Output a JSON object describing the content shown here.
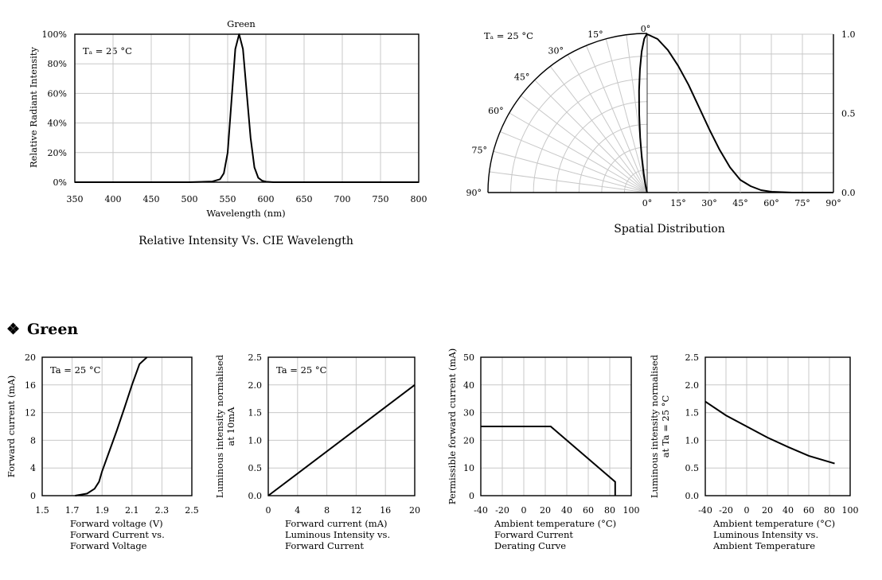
{
  "section": {
    "bullet": "❖",
    "title": "Green"
  },
  "chart_data": [
    {
      "type": "line",
      "id": "spectrum",
      "title": "Relative Intensity Vs. CIE Wavelength",
      "series_label": "Green",
      "condition": "Tₐ = 25 °C",
      "xlabel": "Wavelength (nm)",
      "ylabel": "Relative Radiant Intensity",
      "xlim": [
        350,
        800
      ],
      "ylim": [
        0,
        100
      ],
      "xticks": [
        "350",
        "400",
        "450",
        "500",
        "550",
        "600",
        "650",
        "700",
        "750",
        "800"
      ],
      "yticks": [
        "0%",
        "20%",
        "40%",
        "60%",
        "80%",
        "100%"
      ],
      "grid": true,
      "x": [
        350,
        500,
        530,
        540,
        545,
        550,
        555,
        560,
        565,
        570,
        575,
        580,
        585,
        590,
        595,
        600,
        610,
        800
      ],
      "y": [
        0,
        0,
        0.5,
        2,
        6,
        20,
        55,
        90,
        100,
        90,
        60,
        30,
        10,
        3,
        1,
        0.3,
        0,
        0
      ]
    },
    {
      "type": "line",
      "id": "spatial",
      "title": "Spatial Distribution",
      "condition": "Tₐ = 25 °C",
      "polar_angles": [
        "0°",
        "15°",
        "30°",
        "45°",
        "60°",
        "75°",
        "90°"
      ],
      "xticks": [
        "0°",
        "15°",
        "30°",
        "45°",
        "60°",
        "75°",
        "90°"
      ],
      "yticks": [
        "0.0",
        "0.5",
        "1.0"
      ],
      "xlim": [
        0,
        90
      ],
      "ylim": [
        0,
        1
      ],
      "grid": true,
      "x": [
        0,
        5,
        10,
        15,
        20,
        25,
        30,
        35,
        40,
        45,
        50,
        55,
        60,
        70,
        80,
        90
      ],
      "y": [
        1.0,
        0.97,
        0.9,
        0.8,
        0.68,
        0.54,
        0.4,
        0.27,
        0.16,
        0.08,
        0.04,
        0.015,
        0.005,
        0,
        0,
        0
      ]
    },
    {
      "type": "line",
      "id": "iv",
      "title": "Forward Current vs. Forward Voltage",
      "title_lines": [
        "Forward voltage (V)",
        "Forward Current vs.",
        "Forward Voltage"
      ],
      "condition": "Ta = 25 °C",
      "xlabel": "Forward voltage (V)",
      "ylabel": "Forward current (mA)",
      "xlim": [
        1.5,
        2.5
      ],
      "ylim": [
        0,
        20
      ],
      "xticks": [
        "1.5",
        "1.7",
        "1.9",
        "2.1",
        "2.3",
        "2.5"
      ],
      "yticks": [
        "0",
        "4",
        "8",
        "12",
        "16",
        "20"
      ],
      "grid": true,
      "x": [
        1.72,
        1.8,
        1.85,
        1.88,
        1.9,
        1.95,
        2.0,
        2.05,
        2.1,
        2.15,
        2.2
      ],
      "y": [
        0,
        0.3,
        1.0,
        2.0,
        3.5,
        6.5,
        9.5,
        12.7,
        16.0,
        19.0,
        20
      ]
    },
    {
      "type": "line",
      "id": "liv",
      "title": "Luminous Intensity vs. Forward Current",
      "title_lines": [
        "Forward current (mA)",
        "Luminous Intensity vs.",
        "Forward Current"
      ],
      "condition": "Ta = 25 °C",
      "xlabel": "Forward current (mA)",
      "ylabel": "Luminous intensity normalised at 10mA",
      "ylabel_lines": [
        "Luminous intensity normalised",
        "at 10mA"
      ],
      "xlim": [
        0,
        20
      ],
      "ylim": [
        0,
        2.5
      ],
      "xticks": [
        "0",
        "4",
        "8",
        "12",
        "16",
        "20"
      ],
      "yticks": [
        "0.0",
        "0.5",
        "1.0",
        "1.5",
        "2.0",
        "2.5"
      ],
      "grid": true,
      "x": [
        0,
        20
      ],
      "y": [
        0,
        2.0
      ]
    },
    {
      "type": "line",
      "id": "derating",
      "title": "Forward Current Derating Curve",
      "title_lines": [
        "Ambient temperature (°C)",
        "Forward Current",
        "Derating  Curve"
      ],
      "xlabel": "Ambient temperature (°C)",
      "ylabel": "Permissible forward current (mA)",
      "xlim": [
        -40,
        100
      ],
      "ylim": [
        0,
        50
      ],
      "xticks": [
        "-40",
        "-20",
        "0",
        "20",
        "40",
        "60",
        "80",
        "100"
      ],
      "yticks": [
        "0",
        "10",
        "20",
        "30",
        "40",
        "50"
      ],
      "grid": true,
      "x": [
        -40,
        25,
        85,
        85
      ],
      "y": [
        25,
        25,
        5,
        0
      ]
    },
    {
      "type": "line",
      "id": "temp",
      "title": "Luminous Intensity vs. Ambient Temperature",
      "title_lines": [
        "Ambient temperature (°C)",
        "Luminous Intensity vs.",
        "Ambient Temperature"
      ],
      "xlabel": "Ambient temperature (°C)",
      "ylabel": "Luminous intensity normalised at Ta = 25 °C",
      "ylabel_lines": [
        "Luminous intensity normalised",
        "at Ta = 25 °C"
      ],
      "xlim": [
        -40,
        100
      ],
      "ylim": [
        0,
        2.5
      ],
      "xticks": [
        "-40",
        "-20",
        "0",
        "20",
        "40",
        "60",
        "80",
        "100"
      ],
      "yticks": [
        "0.0",
        "0.5",
        "1.0",
        "1.5",
        "2.0",
        "2.5"
      ],
      "grid": true,
      "x": [
        -40,
        -20,
        0,
        20,
        40,
        60,
        85
      ],
      "y": [
        1.7,
        1.45,
        1.25,
        1.05,
        0.88,
        0.72,
        0.58
      ]
    }
  ]
}
